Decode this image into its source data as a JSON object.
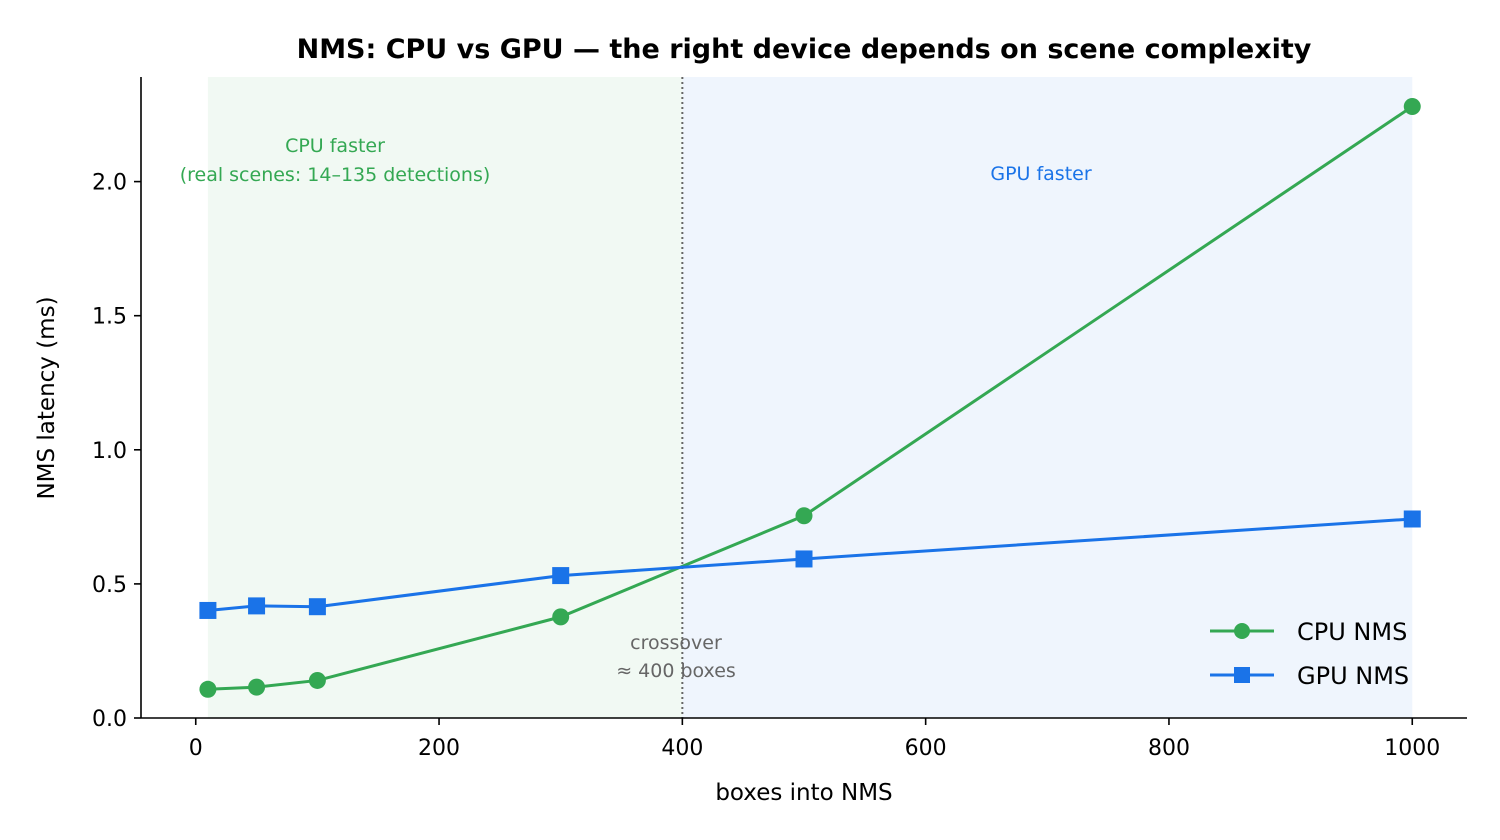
{
  "chart_data": {
    "type": "line",
    "title": "NMS: CPU vs GPU — the right device depends on scene complexity",
    "xlabel": "boxes into NMS",
    "ylabel": "NMS latency (ms)",
    "xlim": [
      -45,
      1045
    ],
    "ylim": [
      0,
      2.39
    ],
    "xticks": [
      0,
      200,
      400,
      600,
      800,
      1000
    ],
    "xtick_labels": [
      "0",
      "200",
      "400",
      "600",
      "800",
      "1000"
    ],
    "yticks": [
      0.0,
      0.5,
      1.0,
      1.5,
      2.0
    ],
    "ytick_labels": [
      "0.0",
      "0.5",
      "1.0",
      "1.5",
      "2.0"
    ],
    "grid": false,
    "legend_position": "lower-right",
    "series": [
      {
        "name": "CPU NMS",
        "color": "#34a853",
        "marker": "circle",
        "x": [
          10,
          50,
          100,
          300,
          500,
          1000
        ],
        "y": [
          0.107,
          0.115,
          0.14,
          0.377,
          0.754,
          2.28
        ]
      },
      {
        "name": "GPU NMS",
        "color": "#1a73e8",
        "marker": "square",
        "x": [
          10,
          50,
          100,
          300,
          500,
          1000
        ],
        "y": [
          0.401,
          0.418,
          0.415,
          0.531,
          0.593,
          0.742
        ]
      }
    ],
    "regions": [
      {
        "label_line1": "CPU faster",
        "label_line2": "(real scenes: 14–135 detections)",
        "x_range": [
          10,
          400
        ],
        "color": "#34a853"
      },
      {
        "label_line1": "GPU faster",
        "label_line2": "",
        "x_range": [
          400,
          1000
        ],
        "color": "#1a73e8"
      }
    ],
    "crossover": {
      "x": 400,
      "label_line1": "crossover",
      "label_line2": "≈ 400 boxes"
    }
  }
}
